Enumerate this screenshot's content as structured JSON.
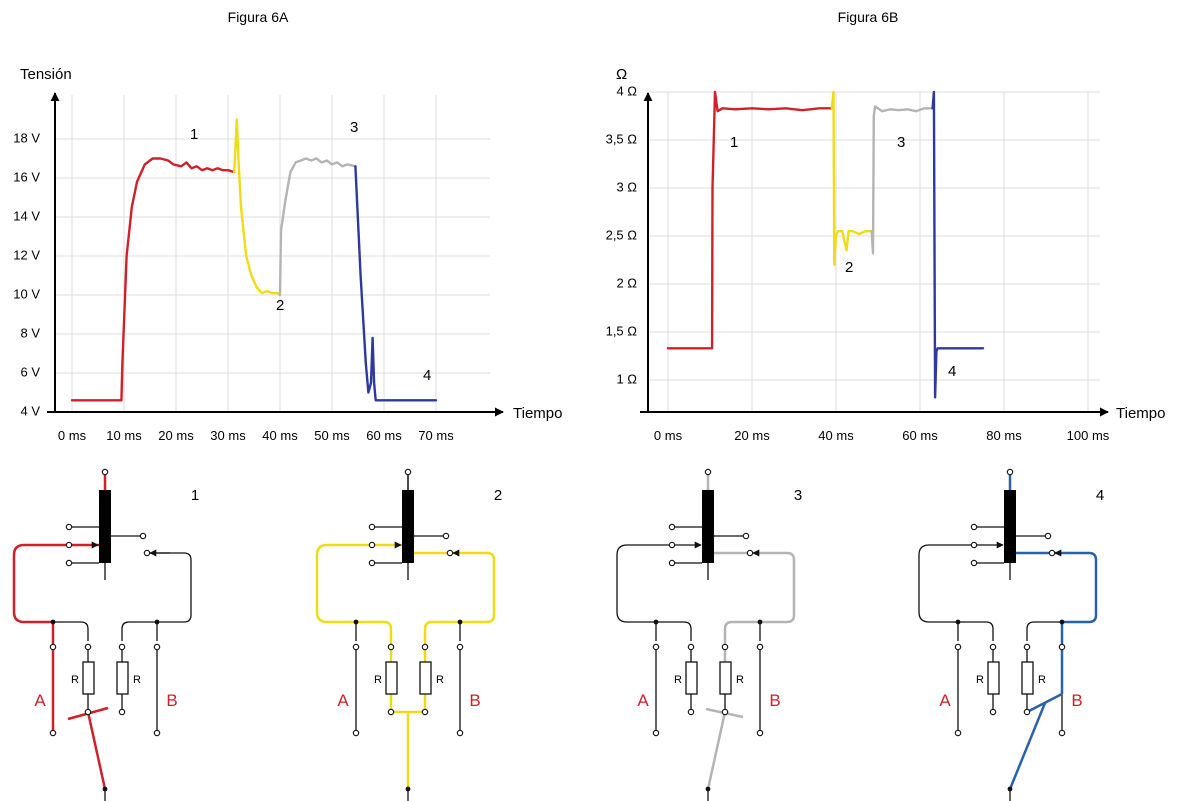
{
  "figure_6a": {
    "title": "Figura 6A",
    "ylabel": "Tensión",
    "xlabel": "Tiempo",
    "y_ticks": [
      "4 V",
      "6 V",
      "8 V",
      "10 V",
      "12 V",
      "14 V",
      "16 V",
      "18 V"
    ],
    "x_ticks": [
      "0 ms",
      "10 ms",
      "20 ms",
      "30 ms",
      "40 ms",
      "50 ms",
      "60 ms",
      "70 ms"
    ],
    "phase_labels": [
      "1",
      "2",
      "3",
      "4"
    ]
  },
  "figure_6b": {
    "title": "Figura 6B",
    "ylabel": "Ω",
    "xlabel": "Tiempo",
    "y_ticks": [
      "1 Ω",
      "1,5 Ω",
      "2 Ω",
      "2,5 Ω",
      "3 Ω",
      "3,5 Ω",
      "4 Ω"
    ],
    "x_ticks": [
      "0 ms",
      "20 ms",
      "40 ms",
      "60 ms",
      "80 ms",
      "100 ms"
    ],
    "phase_labels": [
      "1",
      "2",
      "3",
      "4"
    ]
  },
  "colors": {
    "phase_1": "#d0202a",
    "phase_2": "#f0dc14",
    "phase_3": "#b4b4b4",
    "phase_4": "#2d3a9c",
    "circuit_4": "#2a62a8",
    "grid": "#dcdcdc"
  },
  "circuits": [
    {
      "number": "1",
      "resistor_left": "R",
      "resistor_right": "R",
      "label_a": "A",
      "label_b": "B"
    },
    {
      "number": "2",
      "resistor_left": "R",
      "resistor_right": "R",
      "label_a": "A",
      "label_b": "B"
    },
    {
      "number": "3",
      "resistor_left": "R",
      "resistor_right": "R",
      "label_a": "A",
      "label_b": "B"
    },
    {
      "number": "4",
      "resistor_left": "R",
      "resistor_right": "R",
      "label_a": "A",
      "label_b": "B"
    }
  ],
  "chart_data": [
    {
      "type": "line",
      "title": "Figura 6A",
      "xlabel": "Tiempo",
      "ylabel": "Tensión",
      "x_unit": "ms",
      "y_unit": "V",
      "xlim": [
        0,
        70
      ],
      "ylim": [
        4,
        19
      ],
      "grid": true,
      "series": [
        {
          "name": "1",
          "x": [
            0,
            9.5,
            9.7,
            10.5,
            11.5,
            12.5,
            14,
            15.5,
            17,
            18.5,
            19.5,
            21,
            22,
            23,
            24,
            25,
            26,
            27,
            28,
            29,
            30,
            31.2
          ],
          "y": [
            4.6,
            4.6,
            6.5,
            12,
            14.5,
            15.8,
            16.7,
            17.0,
            17.0,
            16.9,
            16.7,
            16.6,
            16.8,
            16.5,
            16.6,
            16.4,
            16.5,
            16.4,
            16.5,
            16.4,
            16.4,
            16.3
          ]
        },
        {
          "name": "2",
          "x": [
            31.2,
            31.7,
            32.0,
            32.5,
            33.5,
            34.5,
            35.5,
            36.5,
            37.5,
            38.5,
            39.5,
            40.0
          ],
          "y": [
            16.3,
            19.0,
            17.0,
            14.5,
            12.0,
            11.0,
            10.4,
            10.1,
            10.2,
            10.1,
            10.1,
            10.0
          ]
        },
        {
          "name": "3",
          "x": [
            40.0,
            40.2,
            41,
            42,
            43,
            44,
            45,
            46,
            47,
            48,
            49,
            50,
            51,
            52,
            53,
            54.5
          ],
          "y": [
            10.0,
            13.3,
            14.8,
            16.3,
            16.8,
            16.9,
            17.0,
            16.9,
            17.0,
            16.8,
            16.9,
            16.7,
            16.8,
            16.6,
            16.7,
            16.6
          ]
        },
        {
          "name": "4",
          "x": [
            54.5,
            55.5,
            56.5,
            57.0,
            57.5,
            57.8,
            58.1,
            58.4,
            58.8,
            70
          ],
          "y": [
            16.6,
            11.0,
            6.5,
            5.0,
            5.5,
            7.8,
            5.5,
            4.6,
            4.6,
            4.6
          ]
        }
      ]
    },
    {
      "type": "line",
      "title": "Figura 6B",
      "xlabel": "Tiempo",
      "ylabel": "Ω",
      "x_unit": "ms",
      "y_unit": "Ω",
      "xlim": [
        0,
        100
      ],
      "ylim": [
        0.8,
        4
      ],
      "grid": true,
      "series": [
        {
          "name": "1",
          "x": [
            0,
            10.5,
            10.6,
            11.2,
            11.8,
            13,
            16,
            20,
            24,
            28,
            32,
            36,
            39.0
          ],
          "y": [
            1.33,
            1.33,
            3.0,
            4.0,
            3.8,
            3.83,
            3.82,
            3.83,
            3.82,
            3.83,
            3.81,
            3.83,
            3.83
          ]
        },
        {
          "name": "2",
          "x": [
            39.0,
            39.4,
            39.6,
            40.0,
            40.5,
            41.5,
            42.5,
            43,
            44,
            45.5,
            47,
            48.5
          ],
          "y": [
            3.83,
            4.0,
            2.2,
            2.5,
            2.55,
            2.55,
            2.35,
            2.55,
            2.55,
            2.52,
            2.55,
            2.55
          ]
        },
        {
          "name": "3",
          "x": [
            48.5,
            48.8,
            49.0,
            49.3,
            51,
            53,
            55,
            57,
            59,
            61,
            63.0
          ],
          "y": [
            2.55,
            2.32,
            3.75,
            3.85,
            3.8,
            3.82,
            3.81,
            3.82,
            3.8,
            3.83,
            3.83
          ]
        },
        {
          "name": "4",
          "x": [
            63.0,
            63.3,
            63.6,
            63.9,
            64.2,
            75
          ],
          "y": [
            3.83,
            4.0,
            0.82,
            1.3,
            1.33,
            1.33
          ]
        }
      ]
    }
  ]
}
